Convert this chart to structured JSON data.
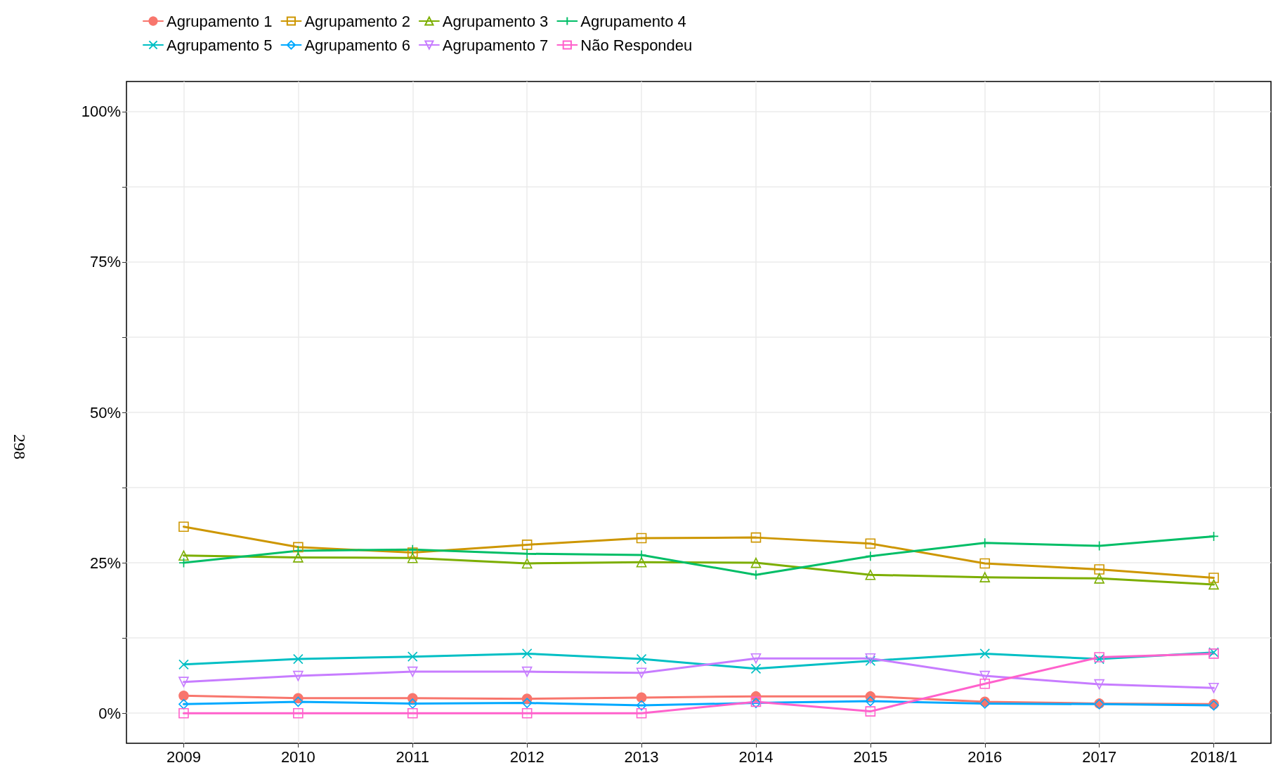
{
  "chart_data": {
    "type": "line",
    "categories": [
      "2009",
      "2010",
      "2011",
      "2012",
      "2013",
      "2014",
      "2015",
      "2016",
      "2017",
      "2018/1"
    ],
    "series": [
      {
        "name": "Agrupamento 1",
        "color": "#F8766D",
        "marker": "circle",
        "values": [
          2.9,
          2.5,
          2.5,
          2.4,
          2.6,
          2.8,
          2.8,
          1.9,
          1.6,
          1.5
        ]
      },
      {
        "name": "Agrupamento 2",
        "color": "#CD9600",
        "marker": "square",
        "values": [
          31.0,
          27.6,
          26.7,
          28.0,
          29.1,
          29.2,
          28.2,
          24.9,
          23.9,
          22.5
        ]
      },
      {
        "name": "Agrupamento 3",
        "color": "#7CAE00",
        "marker": "triangle",
        "values": [
          26.2,
          25.9,
          25.8,
          24.9,
          25.1,
          25.0,
          23.0,
          22.6,
          22.4,
          21.4
        ]
      },
      {
        "name": "Agrupamento 4",
        "color": "#00BE67",
        "marker": "cross",
        "values": [
          25.0,
          27.0,
          27.2,
          26.5,
          26.3,
          23.0,
          26.1,
          28.3,
          27.8,
          29.4
        ]
      },
      {
        "name": "Agrupamento 5",
        "color": "#00BFC4",
        "marker": "x",
        "values": [
          8.1,
          9.0,
          9.4,
          9.9,
          9.0,
          7.4,
          8.7,
          9.9,
          9.0,
          10.1
        ]
      },
      {
        "name": "Agrupamento 6",
        "color": "#00A9FF",
        "marker": "diamond",
        "values": [
          1.5,
          1.9,
          1.6,
          1.7,
          1.3,
          1.7,
          2.0,
          1.6,
          1.5,
          1.3
        ]
      },
      {
        "name": "Agrupamento 7",
        "color": "#C77CFF",
        "marker": "triangle-down",
        "values": [
          5.2,
          6.2,
          6.9,
          6.9,
          6.7,
          9.1,
          9.1,
          6.2,
          4.8,
          4.2
        ]
      },
      {
        "name": "Não Respondeu",
        "color": "#FF61CC",
        "marker": "square",
        "values": [
          0,
          0,
          0,
          0,
          0,
          1.9,
          0.3,
          4.9,
          9.3,
          9.9
        ]
      }
    ],
    "ylim": [
      -5,
      105
    ],
    "yticks": [
      {
        "value": 0,
        "label": "0%"
      },
      {
        "value": 12.5,
        "label": null
      },
      {
        "value": 25,
        "label": "25%"
      },
      {
        "value": 37.5,
        "label": null
      },
      {
        "value": 50,
        "label": "50%"
      },
      {
        "value": 62.5,
        "label": null
      },
      {
        "value": 75,
        "label": "75%"
      },
      {
        "value": 87.5,
        "label": null
      },
      {
        "value": 100,
        "label": "100%"
      }
    ],
    "grid": true,
    "legend": "top left",
    "line_style": "solid",
    "annotations": [
      "298"
    ]
  }
}
